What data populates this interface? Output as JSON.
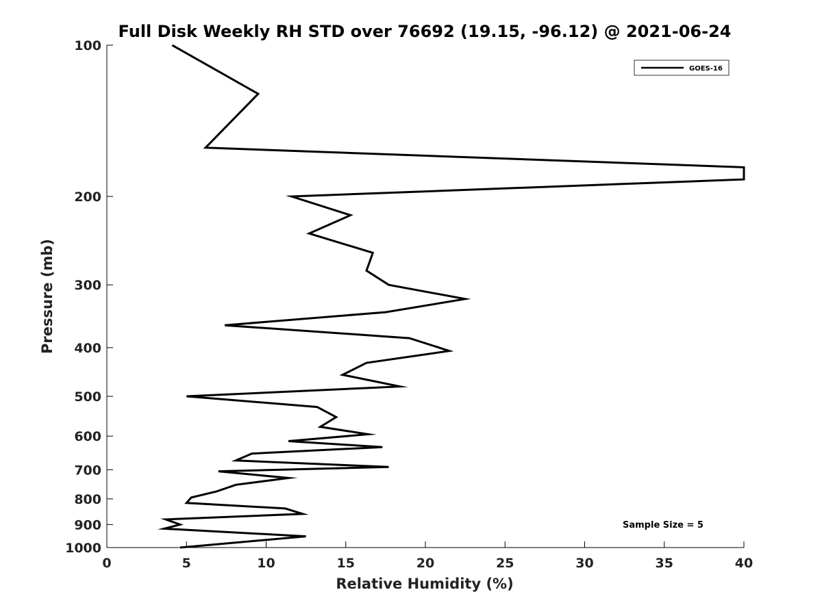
{
  "chart_data": {
    "type": "line",
    "title": "Full Disk Weekly RH STD over 76692 (19.15, -96.12) @ 2021-06-24",
    "xlabel": "Relative Humidity (%)",
    "ylabel": "Pressure (mb)",
    "xlim": [
      0,
      40
    ],
    "ylim": [
      1000,
      100
    ],
    "y_scale": "log",
    "x_ticks": [
      "0",
      "5",
      "10",
      "15",
      "20",
      "25",
      "30",
      "35",
      "40"
    ],
    "y_ticks": [
      "100",
      "200",
      "300",
      "400",
      "500",
      "600",
      "700",
      "800",
      "900",
      "1000"
    ],
    "grid": false,
    "legend_position": "top-right",
    "annotation": "Sample Size = 5",
    "series": [
      {
        "name": "GOES-16",
        "color": "#000000",
        "points": [
          [
            4.1,
            100
          ],
          [
            9.5,
            125
          ],
          [
            6.2,
            160
          ],
          [
            40,
            175
          ],
          [
            40,
            185
          ],
          [
            11.6,
            200
          ],
          [
            15.3,
            218
          ],
          [
            12.7,
            237
          ],
          [
            16.7,
            259
          ],
          [
            16.3,
            281
          ],
          [
            17.7,
            300
          ],
          [
            22.5,
            320
          ],
          [
            17.5,
            340
          ],
          [
            7.4,
            361
          ],
          [
            19.0,
            383
          ],
          [
            21.5,
            406
          ],
          [
            16.3,
            429
          ],
          [
            14.8,
            453
          ],
          [
            18.4,
            478
          ],
          [
            5.0,
            500
          ],
          [
            13.2,
            525
          ],
          [
            14.4,
            550
          ],
          [
            13.4,
            575
          ],
          [
            16.4,
            595
          ],
          [
            11.4,
            614
          ],
          [
            17.3,
            631
          ],
          [
            9.1,
            650
          ],
          [
            8.1,
            671
          ],
          [
            17.7,
            691
          ],
          [
            7.0,
            705
          ],
          [
            11.4,
            727
          ],
          [
            8.1,
            750
          ],
          [
            6.9,
            773
          ],
          [
            5.3,
            795
          ],
          [
            5.0,
            815
          ],
          [
            11.2,
            836
          ],
          [
            12.3,
            857
          ],
          [
            3.7,
            879
          ],
          [
            4.6,
            900
          ],
          [
            3.6,
            917
          ],
          [
            12.5,
            950
          ],
          [
            4.6,
            1000
          ]
        ]
      }
    ]
  }
}
